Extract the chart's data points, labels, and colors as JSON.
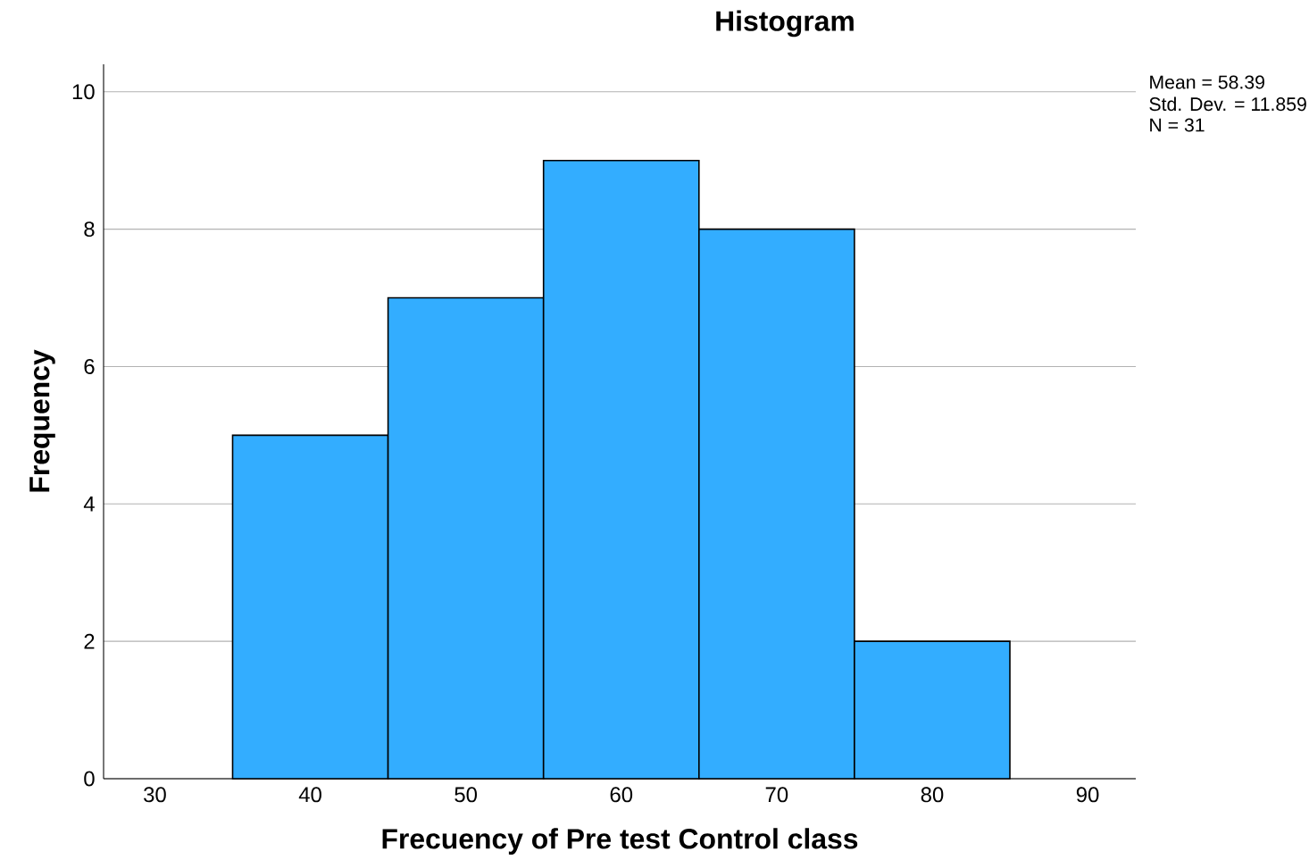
{
  "chart_data": {
    "type": "histogram",
    "title": "Histogram",
    "xlabel": "Frecuency of Pre test Control class",
    "ylabel": "Frequency",
    "bins": [
      35,
      45,
      55,
      65,
      75,
      85
    ],
    "values": [
      5,
      7,
      9,
      8,
      2
    ],
    "color": "#33adff",
    "xlim": [
      26.7,
      93.1
    ],
    "xticks": [
      30,
      40,
      50,
      60,
      70,
      80,
      90
    ],
    "ylim": [
      0,
      10.4
    ],
    "yticks": [
      0,
      2,
      4,
      6,
      8,
      10
    ],
    "grid": "y",
    "annotations": [
      "Mean = 58.39",
      "Std. Dev. = 11.859",
      "N = 31"
    ]
  }
}
